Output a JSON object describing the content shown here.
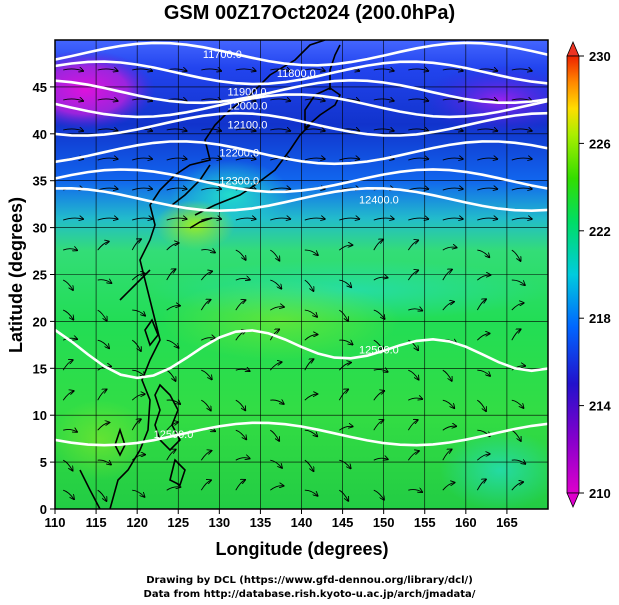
{
  "title": "GSM 00Z17Oct2024 (200.0hPa)",
  "x_axis": {
    "label": "Longitude (degrees)",
    "ticks": [
      "110",
      "115",
      "120",
      "125",
      "130",
      "135",
      "140",
      "145",
      "150",
      "155",
      "160",
      "165"
    ]
  },
  "y_axis": {
    "label": "Latitude  (degrees)",
    "ticks": [
      "0",
      "5",
      "10",
      "15",
      "20",
      "25",
      "30",
      "35",
      "40",
      "45"
    ]
  },
  "colorbar": {
    "ticks": [
      "210",
      "214",
      "218",
      "222",
      "226",
      "230"
    ],
    "colors": [
      "#cc00cc",
      "#4400cc",
      "#0066ff",
      "#00ccff",
      "#00ff99",
      "#33dd00",
      "#aaee00",
      "#ffee00",
      "#ff9900",
      "#ee2200"
    ]
  },
  "contours": [
    {
      "label": "11700.0",
      "lat_approx": 48.5
    },
    {
      "label": "11800.0",
      "lat_approx": 46.5
    },
    {
      "label": "11900.0",
      "lat_approx": 44.5
    },
    {
      "label": "12000.0",
      "lat_approx": 43
    },
    {
      "label": "12100.0",
      "lat_approx": 41
    },
    {
      "label": "12200.0",
      "lat_approx": 38
    },
    {
      "label": "12300.0",
      "lat_approx": 35
    },
    {
      "label": "12400.0",
      "lat_approx": 33
    },
    {
      "label": "12500.0",
      "lat_approx": 17
    },
    {
      "label": "12500.0",
      "lat_approx": 8
    }
  ],
  "credits": [
    "Drawing by DCL (https://www.gfd-dennou.org/library/dcl/)",
    "Data from http://database.rish.kyoto-u.ac.jp/arch/jmadata/"
  ]
}
